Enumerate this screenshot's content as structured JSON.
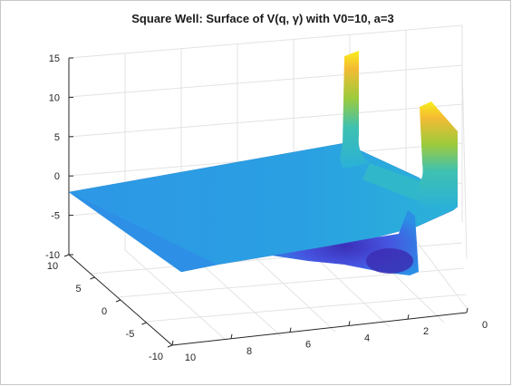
{
  "window": {
    "background": "#f0f0f0",
    "axes_background": "#ffffff"
  },
  "chart_data": {
    "type": "surface",
    "title": "Square Well: Surface of V(q, γ) with V0=10, a=3",
    "xlabel": "",
    "ylabel": "",
    "zlabel": "",
    "grid": true,
    "colormap": "parula",
    "parameters": {
      "V0": 10,
      "a": 3
    },
    "q_axis": {
      "range": [
        0,
        10
      ],
      "ticks": [
        0,
        2,
        4,
        6,
        8,
        10
      ]
    },
    "gamma_axis": {
      "range": [
        -10,
        10
      ],
      "ticks": [
        -10,
        -5,
        0,
        5,
        10
      ]
    },
    "z_axis": {
      "range": [
        -10,
        15
      ],
      "ticks": [
        -10,
        -5,
        0,
        5,
        10,
        15
      ]
    }
  }
}
